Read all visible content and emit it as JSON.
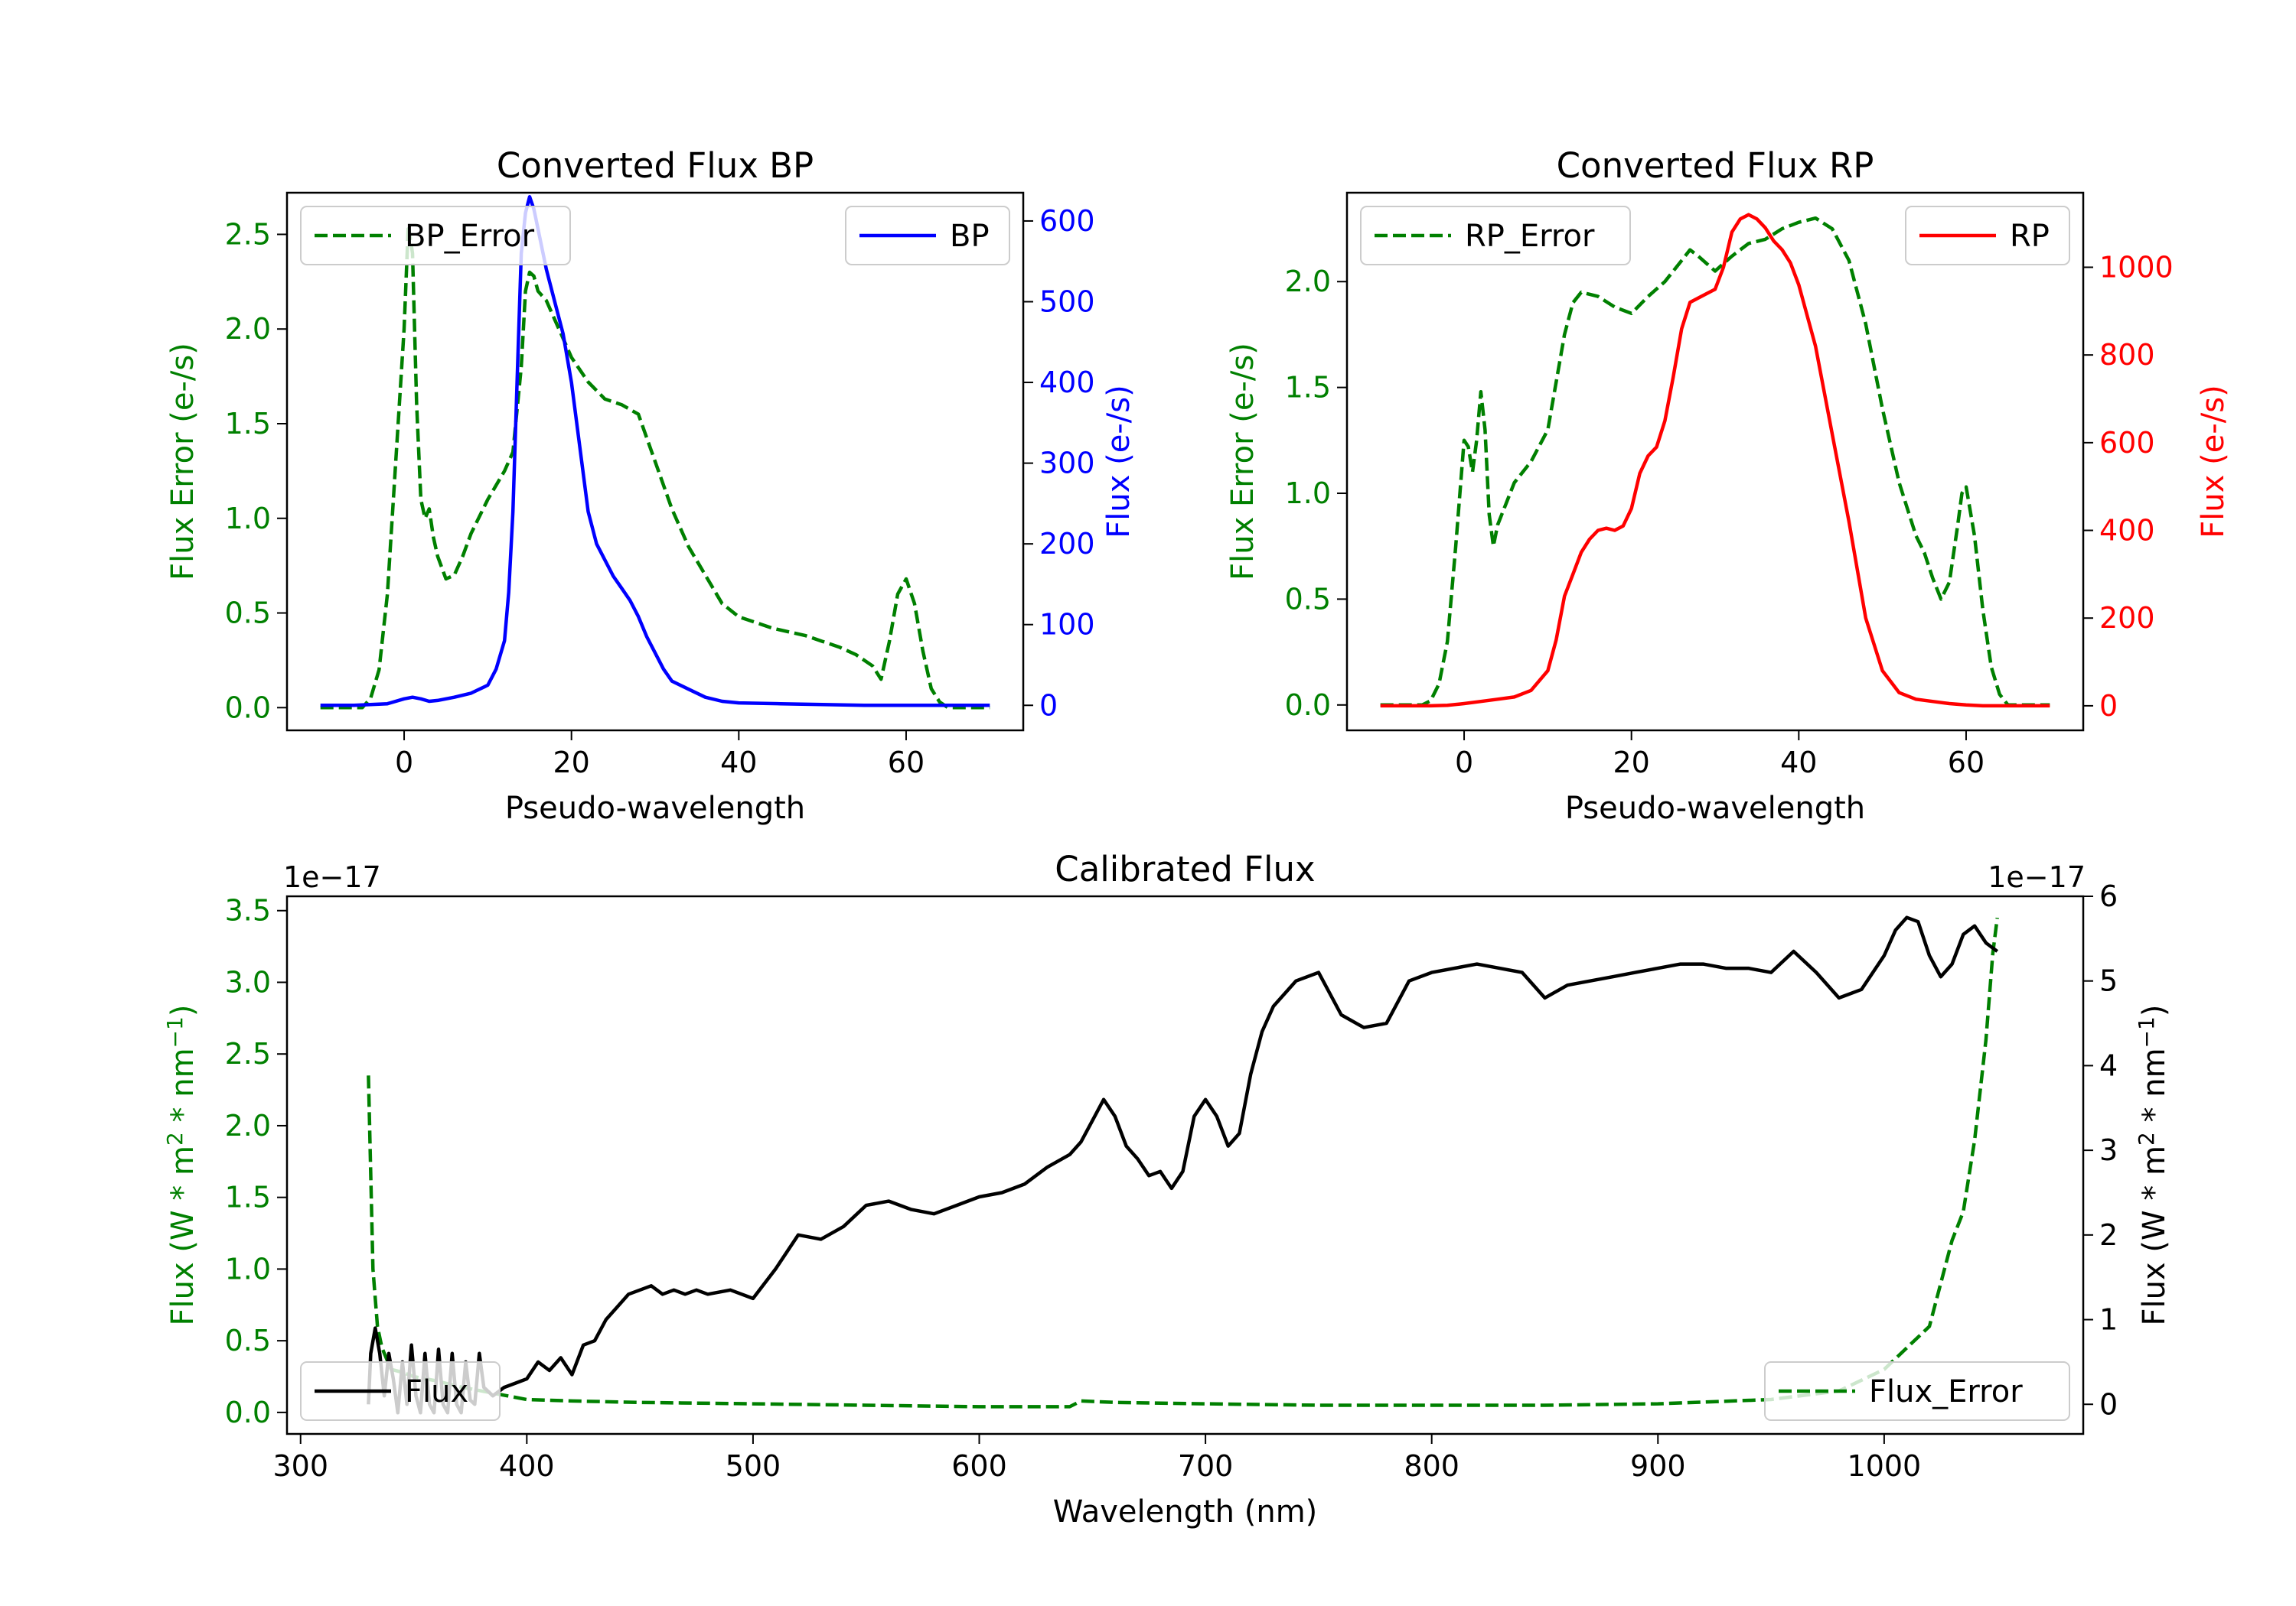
{
  "colors": {
    "green": "#008000",
    "blue": "#0000ff",
    "red": "#ff0000",
    "black": "#000000"
  },
  "chart_data": [
    {
      "type": "line",
      "id": "bp",
      "title": "Converted Flux BP",
      "xlabel": "Pseudo-wavelength",
      "xlim": [
        -14,
        74
      ],
      "xticks": [
        0,
        20,
        40,
        60
      ],
      "left_axis": {
        "label": "Flux Error (e-/s)",
        "color": "#008000",
        "lim": [
          -0.12,
          2.72
        ],
        "ticks": [
          0.0,
          0.5,
          1.0,
          1.5,
          2.0,
          2.5
        ],
        "tick_labels": [
          "0.0",
          "0.5",
          "1.0",
          "1.5",
          "2.0",
          "2.5"
        ]
      },
      "right_axis": {
        "label": "Flux (e-/s)",
        "color": "#0000ff",
        "lim": [
          -31,
          635
        ],
        "ticks": [
          0,
          100,
          200,
          300,
          400,
          500,
          600
        ],
        "tick_labels": [
          "0",
          "100",
          "200",
          "300",
          "400",
          "500",
          "600"
        ]
      },
      "legend": [
        {
          "label": "BP_Error",
          "placement": "upper-left",
          "style": "dashed",
          "color": "#008000"
        },
        {
          "label": "BP",
          "placement": "upper-right",
          "style": "solid",
          "color": "#0000ff"
        }
      ],
      "series": [
        {
          "name": "BP_Error",
          "axis": "left",
          "color": "#008000",
          "style": "dashed",
          "x": [
            -10,
            -5,
            -4,
            -3,
            -2,
            -1,
            0,
            0.5,
            1,
            1.5,
            2,
            2.5,
            3,
            3.5,
            4,
            5,
            6,
            7,
            8,
            10,
            12,
            13,
            14,
            14.5,
            15,
            15.5,
            16,
            17,
            18,
            19,
            20,
            22,
            24,
            26,
            28,
            30,
            32,
            34,
            36,
            38,
            40,
            42,
            44,
            46,
            48,
            50,
            52,
            54,
            56,
            57,
            58,
            59,
            60,
            61,
            62,
            63,
            64,
            65,
            70
          ],
          "y": [
            0.0,
            0.0,
            0.05,
            0.2,
            0.6,
            1.3,
            2.0,
            2.55,
            2.4,
            1.6,
            1.1,
            1.0,
            1.05,
            0.9,
            0.8,
            0.68,
            0.7,
            0.8,
            0.92,
            1.1,
            1.25,
            1.35,
            1.8,
            2.2,
            2.3,
            2.28,
            2.2,
            2.15,
            2.05,
            1.95,
            1.85,
            1.72,
            1.63,
            1.6,
            1.55,
            1.3,
            1.05,
            0.85,
            0.7,
            0.55,
            0.48,
            0.45,
            0.42,
            0.4,
            0.38,
            0.35,
            0.32,
            0.28,
            0.22,
            0.15,
            0.35,
            0.6,
            0.68,
            0.55,
            0.3,
            0.1,
            0.03,
            0.0,
            0.0
          ]
        },
        {
          "name": "BP",
          "axis": "right",
          "color": "#0000ff",
          "style": "solid",
          "x": [
            -10,
            -6,
            -4,
            -2,
            0,
            1,
            2,
            3,
            4,
            6,
            8,
            10,
            11,
            12,
            12.5,
            13,
            13.5,
            14,
            14.5,
            15,
            15.5,
            16,
            17,
            18,
            19,
            20,
            21,
            22,
            23,
            24,
            25,
            26,
            27,
            28,
            29,
            30,
            31,
            32,
            34,
            36,
            38,
            40,
            45,
            50,
            55,
            60,
            65,
            70
          ],
          "y": [
            0,
            0,
            1,
            2,
            8,
            10,
            8,
            5,
            6,
            10,
            15,
            25,
            45,
            80,
            140,
            240,
            400,
            560,
            610,
            630,
            615,
            590,
            540,
            500,
            460,
            400,
            320,
            240,
            200,
            180,
            160,
            145,
            130,
            110,
            85,
            65,
            45,
            30,
            20,
            10,
            5,
            3,
            2,
            1,
            0,
            0,
            0,
            0
          ]
        }
      ]
    },
    {
      "type": "line",
      "id": "rp",
      "title": "Converted Flux RP",
      "xlabel": "Pseudo-wavelength",
      "xlim": [
        -14,
        74
      ],
      "xticks": [
        0,
        20,
        40,
        60
      ],
      "left_axis": {
        "label": "Flux Error (e-/s)",
        "color": "#008000",
        "lim": [
          -0.12,
          2.42
        ],
        "ticks": [
          0.0,
          0.5,
          1.0,
          1.5,
          2.0
        ],
        "tick_labels": [
          "0.0",
          "0.5",
          "1.0",
          "1.5",
          "2.0"
        ]
      },
      "right_axis": {
        "label": "Flux (e-/s)",
        "color": "#ff0000",
        "lim": [
          -56,
          1170
        ],
        "ticks": [
          0,
          200,
          400,
          600,
          800,
          1000
        ],
        "tick_labels": [
          "0",
          "200",
          "400",
          "600",
          "800",
          "1000"
        ]
      },
      "legend": [
        {
          "label": "RP_Error",
          "placement": "upper-left",
          "style": "dashed",
          "color": "#008000"
        },
        {
          "label": "RP",
          "placement": "upper-right",
          "style": "solid",
          "color": "#ff0000"
        }
      ],
      "series": [
        {
          "name": "RP_Error",
          "axis": "left",
          "color": "#008000",
          "style": "dashed",
          "x": [
            -10,
            -5,
            -4,
            -3,
            -2,
            -1,
            0,
            0.5,
            1,
            1.5,
            2,
            2.5,
            3,
            3.5,
            4,
            5,
            6,
            8,
            10,
            12,
            13,
            14,
            16,
            18,
            20,
            22,
            24,
            26,
            27,
            28,
            30,
            32,
            34,
            36,
            38,
            40,
            42,
            44,
            46,
            48,
            50,
            52,
            54,
            55,
            56,
            57,
            58,
            59,
            59.5,
            60,
            61,
            62,
            63,
            64,
            65,
            70
          ],
          "y": [
            0.0,
            0.0,
            0.02,
            0.1,
            0.3,
            0.75,
            1.25,
            1.22,
            1.1,
            1.25,
            1.48,
            1.3,
            0.9,
            0.75,
            0.85,
            0.95,
            1.05,
            1.15,
            1.3,
            1.75,
            1.9,
            1.95,
            1.93,
            1.88,
            1.85,
            1.93,
            2.0,
            2.1,
            2.15,
            2.12,
            2.05,
            2.12,
            2.18,
            2.2,
            2.25,
            2.28,
            2.3,
            2.25,
            2.1,
            1.8,
            1.4,
            1.05,
            0.8,
            0.72,
            0.6,
            0.5,
            0.58,
            0.85,
            1.0,
            1.03,
            0.8,
            0.45,
            0.18,
            0.05,
            0.0,
            0.0
          ]
        },
        {
          "name": "RP",
          "axis": "right",
          "color": "#ff0000",
          "style": "solid",
          "x": [
            -10,
            -4,
            -2,
            0,
            2,
            4,
            6,
            8,
            10,
            11,
            12,
            13,
            14,
            15,
            16,
            17,
            18,
            19,
            20,
            21,
            22,
            23,
            24,
            25,
            26,
            27,
            28,
            29,
            30,
            31,
            32,
            33,
            34,
            35,
            36,
            37,
            38,
            39,
            40,
            42,
            44,
            46,
            48,
            50,
            52,
            54,
            56,
            58,
            60,
            62,
            65,
            70
          ],
          "y": [
            0,
            0,
            1,
            5,
            10,
            15,
            20,
            35,
            80,
            150,
            250,
            300,
            350,
            380,
            400,
            405,
            400,
            410,
            450,
            530,
            570,
            590,
            650,
            750,
            860,
            920,
            930,
            940,
            950,
            1000,
            1080,
            1110,
            1120,
            1110,
            1090,
            1060,
            1040,
            1010,
            960,
            820,
            620,
            420,
            200,
            80,
            30,
            15,
            10,
            5,
            2,
            0,
            0,
            0
          ]
        }
      ]
    },
    {
      "type": "line",
      "id": "calibrated",
      "title": "Calibrated Flux",
      "xlabel": "Wavelength (nm)",
      "xlim": [
        294,
        1088
      ],
      "xticks": [
        300,
        400,
        500,
        600,
        700,
        800,
        900,
        1000
      ],
      "left_axis": {
        "label_base": "Flux (W * m",
        "label_sup1": "2",
        "label_mid": " * nm",
        "label_sup2": "−1",
        "label_end": ")",
        "offset_text": "1e−17",
        "color": "#008000",
        "lim": [
          -0.15,
          3.6
        ],
        "ticks": [
          0.0,
          0.5,
          1.0,
          1.5,
          2.0,
          2.5,
          3.0,
          3.5
        ],
        "tick_labels": [
          "0.0",
          "0.5",
          "1.0",
          "1.5",
          "2.0",
          "2.5",
          "3.0",
          "3.5"
        ]
      },
      "right_axis": {
        "label_base": "Flux (W * m",
        "label_sup1": "2",
        "label_mid": " * nm",
        "label_sup2": "−1",
        "label_end": ")",
        "offset_text": "1e−17",
        "color": "#000000",
        "lim": [
          -0.35,
          6.0
        ],
        "ticks": [
          0,
          1,
          2,
          3,
          4,
          5,
          6
        ],
        "tick_labels": [
          "0",
          "1",
          "2",
          "3",
          "4",
          "5",
          "6"
        ]
      },
      "legend": [
        {
          "label": "Flux",
          "placement": "lower-left",
          "style": "solid",
          "color": "#000000"
        },
        {
          "label": "Flux_Error",
          "placement": "lower-right",
          "style": "dashed",
          "color": "#008000"
        }
      ],
      "series": [
        {
          "name": "Flux_Error",
          "axis": "left",
          "color": "#008000",
          "style": "dashed",
          "x": [
            330,
            332,
            334,
            336,
            340,
            345,
            350,
            360,
            370,
            380,
            390,
            400,
            420,
            450,
            500,
            550,
            600,
            640,
            645,
            660,
            700,
            750,
            800,
            850,
            900,
            950,
            980,
            1000,
            1010,
            1020,
            1025,
            1030,
            1035,
            1040,
            1045,
            1048,
            1050
          ],
          "y": [
            2.35,
            1.0,
            0.6,
            0.45,
            0.3,
            0.28,
            0.25,
            0.22,
            0.18,
            0.15,
            0.12,
            0.09,
            0.08,
            0.07,
            0.06,
            0.05,
            0.04,
            0.04,
            0.08,
            0.07,
            0.06,
            0.05,
            0.05,
            0.05,
            0.06,
            0.09,
            0.15,
            0.3,
            0.45,
            0.6,
            0.9,
            1.2,
            1.4,
            1.9,
            2.6,
            3.2,
            3.45
          ]
        },
        {
          "name": "Flux",
          "axis": "right",
          "color": "#000000",
          "style": "solid",
          "x": [
            330,
            331,
            333,
            335,
            337,
            339,
            341,
            343,
            345,
            347,
            349,
            351,
            353,
            355,
            357,
            359,
            361,
            363,
            365,
            367,
            369,
            371,
            373,
            375,
            377,
            379,
            381,
            385,
            390,
            395,
            400,
            405,
            410,
            415,
            420,
            425,
            430,
            435,
            440,
            445,
            450,
            455,
            460,
            465,
            470,
            475,
            480,
            490,
            500,
            510,
            520,
            530,
            540,
            550,
            560,
            570,
            580,
            590,
            600,
            610,
            620,
            630,
            640,
            645,
            650,
            655,
            660,
            665,
            670,
            675,
            680,
            685,
            690,
            695,
            700,
            705,
            710,
            715,
            720,
            725,
            730,
            740,
            750,
            760,
            770,
            780,
            790,
            800,
            810,
            820,
            830,
            840,
            850,
            860,
            870,
            880,
            890,
            900,
            910,
            920,
            930,
            940,
            950,
            960,
            970,
            980,
            990,
            1000,
            1005,
            1010,
            1015,
            1020,
            1025,
            1030,
            1035,
            1040,
            1045,
            1050
          ],
          "y": [
            0.0,
            0.6,
            0.9,
            0.6,
            0.1,
            0.6,
            0.3,
            -0.1,
            0.5,
            0.0,
            0.7,
            0.1,
            -0.1,
            0.6,
            0.0,
            -0.1,
            0.65,
            0.0,
            -0.1,
            0.6,
            0.0,
            -0.1,
            0.5,
            0.05,
            0.0,
            0.6,
            0.2,
            0.1,
            0.2,
            0.25,
            0.3,
            0.5,
            0.4,
            0.55,
            0.35,
            0.7,
            0.75,
            1.0,
            1.15,
            1.3,
            1.35,
            1.4,
            1.3,
            1.35,
            1.3,
            1.35,
            1.3,
            1.35,
            1.25,
            1.6,
            2.0,
            1.95,
            2.1,
            2.35,
            2.4,
            2.3,
            2.25,
            2.35,
            2.45,
            2.5,
            2.6,
            2.8,
            2.95,
            3.1,
            3.35,
            3.6,
            3.4,
            3.05,
            2.9,
            2.7,
            2.75,
            2.55,
            2.75,
            3.4,
            3.6,
            3.4,
            3.05,
            3.2,
            3.9,
            4.4,
            4.7,
            5.0,
            5.1,
            4.6,
            4.45,
            4.5,
            5.0,
            5.1,
            5.15,
            5.2,
            5.15,
            5.1,
            4.8,
            4.95,
            5.0,
            5.05,
            5.1,
            5.15,
            5.2,
            5.2,
            5.15,
            5.15,
            5.1,
            5.35,
            5.1,
            4.8,
            4.9,
            5.3,
            5.6,
            5.75,
            5.7,
            5.3,
            5.05,
            5.2,
            5.55,
            5.65,
            5.45,
            5.35
          ]
        }
      ]
    }
  ]
}
